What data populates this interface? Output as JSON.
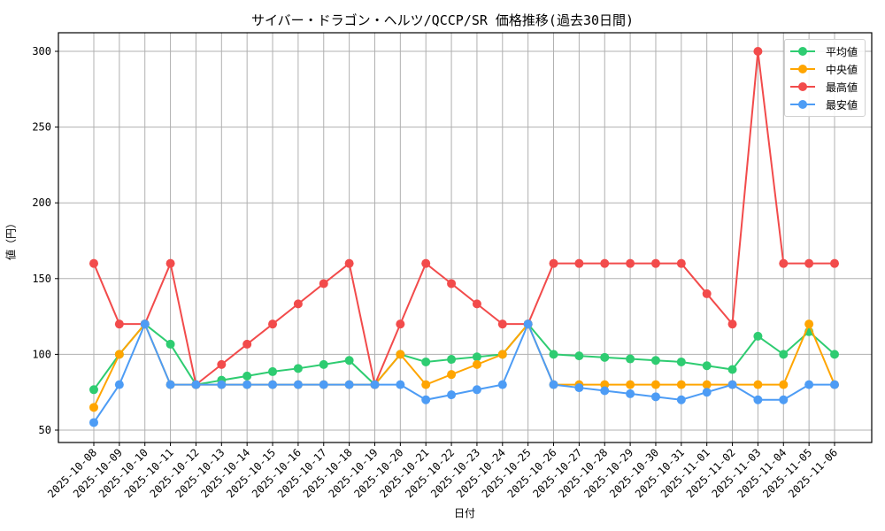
{
  "chart_data": {
    "type": "line",
    "title": "サイバー・ドラゴン・ヘルツ/QCCP/SR 価格推移(過去30日間)",
    "xlabel": "日付",
    "ylabel": "値（円）",
    "ylim": [
      45,
      312
    ],
    "yticks": [
      50,
      100,
      150,
      200,
      250,
      300
    ],
    "grid": true,
    "legend_position": "upper right",
    "categories": [
      "2025-10-08",
      "2025-10-09",
      "2025-10-10",
      "2025-10-11",
      "2025-10-12",
      "2025-10-13",
      "2025-10-14",
      "2025-10-15",
      "2025-10-16",
      "2025-10-17",
      "2025-10-18",
      "2025-10-19",
      "2025-10-20",
      "2025-10-21",
      "2025-10-22",
      "2025-10-23",
      "2025-10-24",
      "2025-10-25",
      "2025-10-26",
      "2025-10-27",
      "2025-10-28",
      "2025-10-29",
      "2025-10-30",
      "2025-10-31",
      "2025-11-01",
      "2025-11-02",
      "2025-11-03",
      "2025-11-04",
      "2025-11-05",
      "2025-11-06"
    ],
    "series": [
      {
        "name": "平均値",
        "color": "#2ecc71",
        "values": [
          76.7,
          100,
          120,
          106.7,
          80,
          82.9,
          85.7,
          88.6,
          90.7,
          93.3,
          96,
          80,
          100,
          95,
          96.7,
          98.3,
          100,
          120,
          100,
          99,
          98,
          97,
          96,
          95,
          92.5,
          90,
          112,
          100,
          115,
          100
        ]
      },
      {
        "name": "中央値",
        "color": "#ffa500",
        "values": [
          65,
          100,
          120,
          80,
          80,
          80,
          80,
          80,
          80,
          80,
          80,
          80,
          100,
          80,
          86.7,
          93.3,
          100,
          120,
          80,
          80,
          80,
          80,
          80,
          80,
          80,
          80,
          80,
          80,
          120,
          80
        ]
      },
      {
        "name": "最高値",
        "color": "#f24b4b",
        "values": [
          160,
          120,
          120,
          160,
          80,
          93.3,
          106.7,
          120,
          133.3,
          146.7,
          160,
          80,
          120,
          160,
          146.7,
          133.3,
          120,
          120,
          160,
          160,
          160,
          160,
          160,
          160,
          140,
          120,
          300,
          160,
          160,
          160
        ]
      },
      {
        "name": "最安値",
        "color": "#4d9cf5",
        "values": [
          55,
          80,
          120,
          80,
          80,
          80,
          80,
          80,
          80,
          80,
          80,
          80,
          80,
          70,
          73.3,
          76.7,
          80,
          120,
          80,
          78,
          76,
          74,
          72,
          70,
          75,
          80,
          70,
          70,
          80,
          80
        ]
      }
    ]
  }
}
